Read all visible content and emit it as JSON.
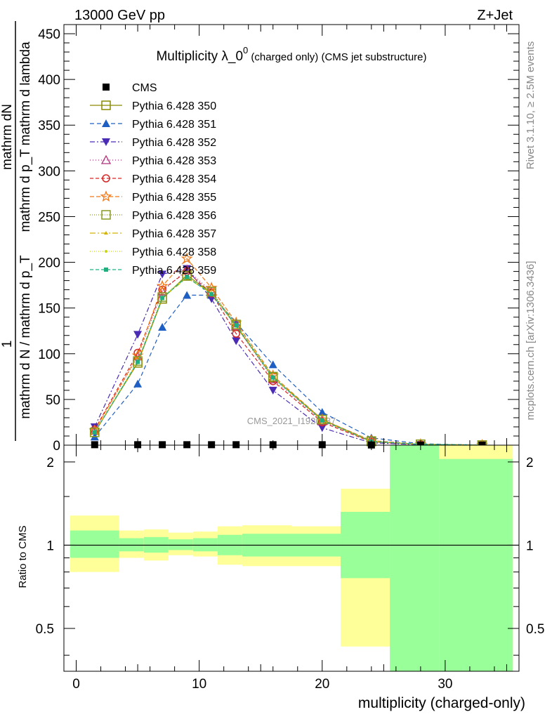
{
  "header": {
    "energy_label": "13000 GeV pp",
    "process_label": "Z+Jet",
    "rivet_label": "Rivet 3.1.10, ≥ 2.5M events",
    "mcplots_label": "mcplots.cern.ch [arXiv:1306.3436]",
    "watermark": "CMS_2021_I1920187"
  },
  "chart_data": [
    {
      "type": "line",
      "title": "Multiplicity λ_0⁰ (charged only) (CMS jet substructure)",
      "title_main": "Multiplicity λ_0",
      "title_sup": "0",
      "title_suffix": " (charged only) (CMS jet substructure)",
      "ylabel_top": "mathrm dN",
      "ylabel_top_2": "mathrm d p_T mathrm d lambda",
      "ylabel_prefactor": "1",
      "ylabel_bottom": "mathrm d N / mathrm d p_T",
      "xlim": [
        -1,
        36
      ],
      "ylim": [
        0,
        460
      ],
      "yticks": [
        0,
        50,
        100,
        150,
        200,
        250,
        300,
        350,
        400,
        450
      ],
      "legend_position": "top-left",
      "series": [
        {
          "name": "CMS",
          "color": "#000000",
          "marker": "square-filled",
          "x": [
            1.5,
            5,
            7,
            9,
            11,
            13,
            16,
            20,
            24,
            28,
            33
          ],
          "y": [
            0.5,
            0.5,
            0.5,
            0.5,
            0.5,
            0.5,
            0.5,
            0.5,
            0.2,
            0.1,
            0.05
          ]
        },
        {
          "name": "Pythia 6.428 350",
          "color": "#8a8a00",
          "marker": "square-open",
          "dash": "solid",
          "x": [
            1.5,
            5,
            7,
            9,
            11,
            13,
            16,
            20,
            24,
            28,
            33
          ],
          "y": [
            14,
            90,
            160,
            186,
            166,
            130,
            74,
            28,
            4,
            1,
            0.1
          ]
        },
        {
          "name": "Pythia 6.428 351",
          "color": "#1f5fc4",
          "marker": "triangle-up-filled",
          "dash": "6,4",
          "x": [
            1.5,
            5,
            7,
            9,
            11,
            13,
            16,
            20,
            24,
            28,
            33
          ],
          "y": [
            9,
            67,
            129,
            164,
            164,
            134,
            88,
            36,
            8,
            1.5,
            0.1
          ]
        },
        {
          "name": "Pythia 6.428 352",
          "color": "#4a2bb5",
          "marker": "triangle-down-filled",
          "dash": "7,3,2,3",
          "x": [
            1.5,
            5,
            7,
            9,
            11,
            13,
            16,
            20,
            24,
            28,
            33
          ],
          "y": [
            20,
            121,
            187,
            193,
            160,
            114,
            60,
            19,
            2.5,
            0.5,
            0.05
          ]
        },
        {
          "name": "Pythia 6.428 353",
          "color": "#b0307a",
          "marker": "triangle-up-open",
          "dash": "1,3",
          "x": [
            1.5,
            5,
            7,
            9,
            11,
            13,
            16,
            20,
            24,
            28,
            33
          ],
          "y": [
            16,
            97,
            168,
            192,
            168,
            130,
            72,
            26,
            4,
            1,
            0.1
          ]
        },
        {
          "name": "Pythia 6.428 354",
          "color": "#d62728",
          "marker": "circle-open",
          "dash": "5,3",
          "x": [
            1.5,
            5,
            7,
            9,
            11,
            13,
            16,
            20,
            24,
            28,
            33
          ],
          "y": [
            17,
            101,
            170,
            190,
            166,
            122,
            70,
            25,
            3.5,
            0.8,
            0.1
          ]
        },
        {
          "name": "Pythia 6.428 355",
          "color": "#f07818",
          "marker": "star-open",
          "dash": "6,3",
          "x": [
            1.5,
            5,
            7,
            9,
            11,
            13,
            16,
            20,
            24,
            28,
            33
          ],
          "y": [
            16,
            98,
            174,
            204,
            172,
            134,
            76,
            28,
            5,
            1,
            0.1
          ]
        },
        {
          "name": "Pythia 6.428 356",
          "color": "#8a9a20",
          "marker": "square-open",
          "dash": "1,2",
          "x": [
            1.5,
            5,
            7,
            9,
            11,
            13,
            16,
            20,
            24,
            28,
            33
          ],
          "y": [
            14,
            92,
            162,
            185,
            168,
            132,
            75,
            28,
            4.5,
            1,
            0.1
          ]
        },
        {
          "name": "Pythia 6.428 357",
          "color": "#d4b400",
          "marker": "tri-small",
          "dash": "8,3,2,3",
          "x": [
            1.5,
            5,
            7,
            9,
            11,
            13,
            16,
            20,
            24,
            28,
            33
          ],
          "y": [
            14,
            91,
            161,
            183,
            166,
            131,
            74,
            27,
            4,
            1,
            0.1
          ]
        },
        {
          "name": "Pythia 6.428 358",
          "color": "#c8d810",
          "marker": "dot",
          "dash": "1,2",
          "x": [
            1.5,
            5,
            7,
            9,
            11,
            13,
            16,
            20,
            24,
            28,
            33
          ],
          "y": [
            14,
            92,
            162,
            184,
            166,
            131,
            74,
            27,
            4,
            1,
            0.1
          ]
        },
        {
          "name": "Pythia 6.428 359",
          "color": "#20b080",
          "marker": "square-small-filled",
          "dash": "5,3",
          "x": [
            1.5,
            5,
            7,
            9,
            11,
            13,
            16,
            20,
            24,
            28,
            33
          ],
          "y": [
            14,
            91,
            161,
            184,
            165,
            131,
            74,
            27,
            4,
            1,
            0.1
          ]
        }
      ]
    },
    {
      "type": "area",
      "xlabel": "multiplicity (charged-only)",
      "ylabel": "Ratio to CMS",
      "xlim": [
        -1,
        36
      ],
      "ylim": [
        0.35,
        2.3
      ],
      "scale": "log",
      "xticks": [
        0,
        10,
        20,
        30
      ],
      "yticks": [
        0.5,
        1,
        2
      ],
      "reference": 1,
      "bins": [
        {
          "x": [
            -0.5,
            3.5
          ],
          "inner": [
            0.9,
            1.13
          ],
          "outer": [
            0.8,
            1.28
          ]
        },
        {
          "x": [
            3.5,
            5.5
          ],
          "inner": [
            0.95,
            1.06
          ],
          "outer": [
            0.9,
            1.13
          ]
        },
        {
          "x": [
            5.5,
            7.5
          ],
          "inner": [
            0.94,
            1.07
          ],
          "outer": [
            0.88,
            1.14
          ]
        },
        {
          "x": [
            7.5,
            9.5
          ],
          "inner": [
            0.96,
            1.05
          ],
          "outer": [
            0.92,
            1.11
          ]
        },
        {
          "x": [
            9.5,
            11.5
          ],
          "inner": [
            0.95,
            1.06
          ],
          "outer": [
            0.91,
            1.12
          ]
        },
        {
          "x": [
            11.5,
            13.5
          ],
          "inner": [
            0.92,
            1.09
          ],
          "outer": [
            0.85,
            1.17
          ]
        },
        {
          "x": [
            13.5,
            17.5
          ],
          "inner": [
            0.91,
            1.1
          ],
          "outer": [
            0.84,
            1.18
          ]
        },
        {
          "x": [
            17.5,
            21.5
          ],
          "inner": [
            0.91,
            1.1
          ],
          "outer": [
            0.84,
            1.17
          ]
        },
        {
          "x": [
            21.5,
            25.5
          ],
          "inner": [
            0.76,
            1.32
          ],
          "outer": [
            0.43,
            1.6
          ]
        },
        {
          "x": [
            25.5,
            29.5
          ],
          "inner": [
            0.33,
            2.3
          ],
          "outer": [
            0.33,
            2.3
          ]
        },
        {
          "x": [
            29.5,
            35.5
          ],
          "inner": [
            0.33,
            2.05
          ],
          "outer": [
            0.33,
            2.3
          ]
        }
      ]
    }
  ]
}
